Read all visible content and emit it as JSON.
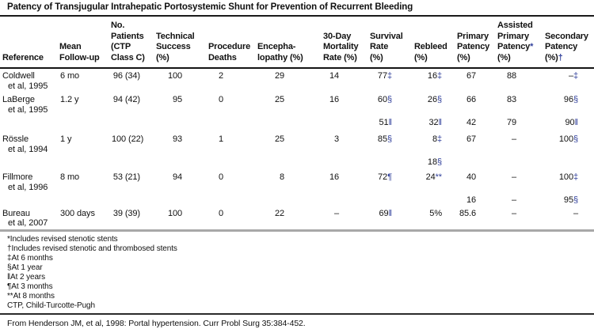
{
  "title": "Patency of Transjugular Intrahepatic Portosystemic Shunt for Prevention of Recurrent Bleeding",
  "colors": {
    "footnote_symbol_blue": "#32419c",
    "rule_dark": "#1a1a1a",
    "rule_gray": "#a8a8a8",
    "text": "#111111"
  },
  "table": {
    "columns": [
      {
        "id": "reference",
        "lines": [
          "Reference"
        ]
      },
      {
        "id": "mean-follow-up",
        "lines": [
          "Mean",
          "Follow-up"
        ]
      },
      {
        "id": "no-patients-ctp-class-c",
        "lines": [
          "No.",
          "Patients",
          "(CTP",
          "Class C)"
        ]
      },
      {
        "id": "technical-success-pct",
        "lines": [
          "Technical",
          "Success",
          "(%)"
        ]
      },
      {
        "id": "procedure-deaths",
        "lines": [
          "Procedure",
          "Deaths"
        ]
      },
      {
        "id": "encephalopathy-pct",
        "lines": [
          "Encepha-",
          "lopathy (%)"
        ]
      },
      {
        "id": "mortality-30-day-pct",
        "lines": [
          "30-Day",
          "Mortality",
          "Rate (%)"
        ]
      },
      {
        "id": "survival-rate-pct",
        "lines": [
          "Survival",
          "Rate",
          "(%)"
        ]
      },
      {
        "id": "rebleed-pct",
        "lines": [
          "Rebleed",
          "(%)"
        ]
      },
      {
        "id": "primary-patency-pct",
        "lines": [
          "Primary",
          "Patency",
          "(%)"
        ]
      },
      {
        "id": "assisted-primary-patency-pct",
        "lines": [
          "Assisted",
          "Primary",
          {
            "t": "Patency",
            "s": "*"
          },
          "(%)"
        ]
      },
      {
        "id": "secondary-patency-pct",
        "lines": [
          "Secondary",
          "Patency",
          {
            "t": "(%)",
            "s": "†"
          }
        ]
      }
    ],
    "rows": [
      {
        "reference": [
          "Coldwell",
          "et al, 1995"
        ],
        "values": [
          "6 mo",
          "96 (34)",
          "100",
          "2",
          "29",
          "14",
          {
            "v": "77",
            "s": "‡"
          },
          {
            "v": "16",
            "s": "‡"
          },
          "67",
          "88",
          {
            "v": "–",
            "s": "‡"
          }
        ]
      },
      {
        "reference": [
          "LaBerge",
          "et al, 1995"
        ],
        "values": [
          "1.2 y",
          "94 (42)",
          "95",
          "0",
          "25",
          "16",
          {
            "v": "60",
            "s": "§"
          },
          {
            "v": "26",
            "s": "§"
          },
          "66",
          "83",
          {
            "v": "96",
            "s": "§"
          }
        ]
      },
      {
        "reference": [],
        "values": [
          "",
          "",
          "",
          "",
          "",
          "",
          {
            "v": "51",
            "s": "‖"
          },
          {
            "v": "32",
            "s": "‖"
          },
          "42",
          "79",
          {
            "v": "90",
            "s": "‖"
          }
        ]
      },
      {
        "reference": [
          "Rössle",
          "et al, 1994"
        ],
        "values": [
          "1 y",
          "100 (22)",
          "93",
          "1",
          "25",
          "3",
          {
            "v": "85",
            "s": "§"
          },
          {
            "v": "8",
            "s": "‡"
          },
          "67",
          "–",
          {
            "v": "100",
            "s": "§"
          }
        ]
      },
      {
        "reference": [],
        "values": [
          "",
          "",
          "",
          "",
          "",
          "",
          "",
          {
            "v": "18",
            "s": "§"
          },
          "",
          "",
          ""
        ]
      },
      {
        "reference": [
          "Fillmore",
          "et al, 1996"
        ],
        "values": [
          "8 mo",
          "53 (21)",
          "94",
          "0",
          "8",
          "16",
          {
            "v": "72",
            "s": "¶"
          },
          {
            "v": "24",
            "s": "**"
          },
          "40",
          "–",
          {
            "v": "100",
            "s": "‡"
          }
        ]
      },
      {
        "reference": [],
        "values": [
          "",
          "",
          "",
          "",
          "",
          "",
          "",
          "",
          "16",
          "–",
          {
            "v": "95",
            "s": "§"
          }
        ]
      },
      {
        "reference": [
          "Bureau",
          "et al, 2007"
        ],
        "values": [
          "300 days",
          "39 (39)",
          "100",
          "0",
          "22",
          "–",
          {
            "v": "69",
            "s": "‖"
          },
          "5%",
          "85.6",
          "–",
          "–"
        ]
      }
    ]
  },
  "footnotes": [
    "*Includes revised stenotic stents",
    "†Includes revised stenotic and thrombosed stents",
    "‡At 6 months",
    "§At 1 year",
    "‖At 2 years",
    "¶At 3 months",
    "**At 8 months",
    "CTP, Child-Turcotte-Pugh"
  ],
  "source": "From Henderson JM, et al, 1998: Portal hypertension. Curr Probl Surg 35:384-452."
}
